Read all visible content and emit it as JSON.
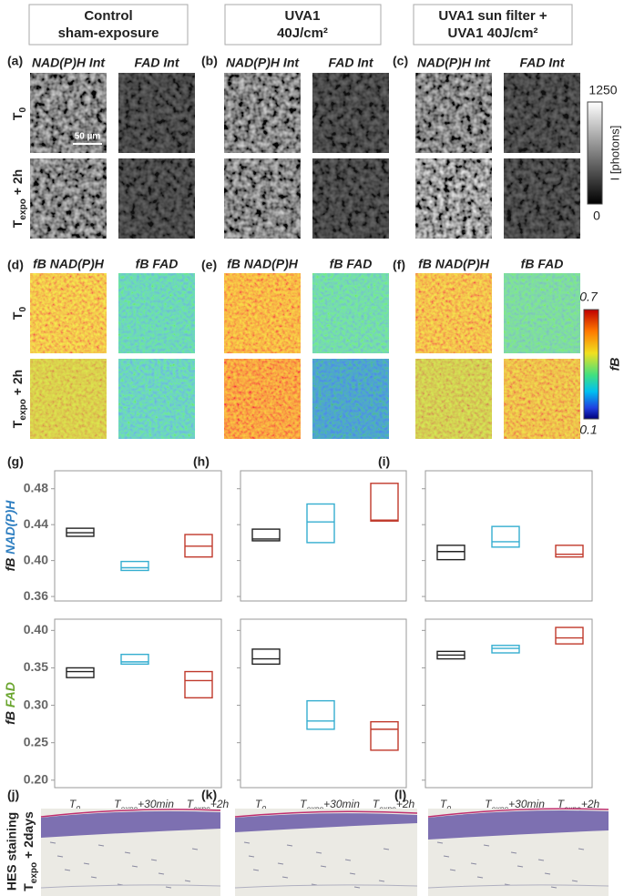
{
  "columns": [
    {
      "line1": "Control",
      "line2": "sham-exposure"
    },
    {
      "line1": "UVA1",
      "line2": "40J/cm²"
    },
    {
      "line1": "UVA1 sun filter +",
      "line2": "UVA1 40J/cm²"
    }
  ],
  "row_labels": [
    {
      "main": "T",
      "sub": "0"
    },
    {
      "main": "T",
      "sub": "expo",
      "tail": " + 2h"
    }
  ],
  "intensity_panels": {
    "letters": [
      "(a)",
      "(b)",
      "(c)"
    ],
    "channels": [
      "NAD(P)H Int",
      "FAD Int"
    ],
    "scale_bar": "50 µm",
    "colorbar": {
      "max": 1250,
      "min": 0,
      "label": "I [photons]"
    }
  },
  "fb_panels": {
    "letters": [
      "(d)",
      "(e)",
      "(f)"
    ],
    "channels": [
      "fB NAD(P)H",
      "fB FAD"
    ],
    "colorbar": {
      "max": 0.7,
      "min": 0.1,
      "label": "fB"
    }
  },
  "chart_data": [
    {
      "type": "box",
      "letter": "(g)",
      "ylabel": {
        "prefix": "fB",
        "name": "NAD(P)H",
        "name_color": "#2f7fc1"
      },
      "show_tick_labels": true,
      "ylim": [
        0.355,
        0.5
      ],
      "yticks": [
        0.36,
        {
          "value": 0.4,
          "label": "0.40"
        },
        0.44,
        0.48
      ],
      "boxes": [
        {
          "color": "#222222",
          "q1": 0.427,
          "median": 0.431,
          "q3": 0.436
        },
        {
          "color": "#35aed0",
          "q1": 0.389,
          "median": 0.392,
          "q3": 0.399
        },
        {
          "color": "#c0392b",
          "q1": 0.404,
          "median": 0.416,
          "q3": 0.429
        }
      ]
    },
    {
      "type": "box",
      "letter": "(h)",
      "show_tick_labels": false,
      "ylim": [
        0.355,
        0.5
      ],
      "yticks": [
        0.36,
        {
          "value": 0.4,
          "label": "0.40"
        },
        0.44,
        0.48
      ],
      "boxes": [
        {
          "color": "#222222",
          "q1": 0.422,
          "median": 0.424,
          "q3": 0.435
        },
        {
          "color": "#35aed0",
          "q1": 0.42,
          "median": 0.443,
          "q3": 0.463
        },
        {
          "color": "#c0392b",
          "q1": 0.444,
          "median": 0.445,
          "q3": 0.486
        }
      ]
    },
    {
      "type": "box",
      "letter": "(i)",
      "show_tick_labels": false,
      "ylim": [
        0.355,
        0.5
      ],
      "yticks": [
        0.36,
        {
          "value": 0.4,
          "label": "0.40"
        },
        0.44,
        0.48
      ],
      "boxes": [
        {
          "color": "#222222",
          "q1": 0.401,
          "median": 0.41,
          "q3": 0.417
        },
        {
          "color": "#35aed0",
          "q1": 0.415,
          "median": 0.421,
          "q3": 0.438
        },
        {
          "color": "#c0392b",
          "q1": 0.404,
          "median": 0.407,
          "q3": 0.417
        }
      ]
    },
    {
      "type": "box",
      "ylabel": {
        "prefix": "fB",
        "name": "FAD",
        "name_color": "#6aa52e"
      },
      "show_tick_labels": true,
      "ylim": [
        0.19,
        0.415
      ],
      "yticks": [
        {
          "value": 0.2,
          "label": "0.20"
        },
        0.25,
        {
          "value": 0.3,
          "label": "0.30"
        },
        0.35,
        {
          "value": 0.4,
          "label": "0.40"
        }
      ],
      "categories": [
        {
          "main": "T",
          "sub": "0"
        },
        {
          "main": "T",
          "sub": "expo",
          "tail": "+30min"
        },
        {
          "main": "T",
          "sub": "expo",
          "tail": "+2h"
        }
      ],
      "boxes": [
        {
          "color": "#222222",
          "q1": 0.337,
          "median": 0.345,
          "q3": 0.35
        },
        {
          "color": "#35aed0",
          "q1": 0.355,
          "median": 0.358,
          "q3": 0.368
        },
        {
          "color": "#c0392b",
          "q1": 0.31,
          "median": 0.333,
          "q3": 0.345
        }
      ]
    },
    {
      "type": "box",
      "show_tick_labels": false,
      "ylim": [
        0.19,
        0.415
      ],
      "yticks": [
        {
          "value": 0.2,
          "label": "0.20"
        },
        0.25,
        {
          "value": 0.3,
          "label": "0.30"
        },
        0.35,
        {
          "value": 0.4,
          "label": "0.40"
        }
      ],
      "categories": [
        {
          "main": "T",
          "sub": "0"
        },
        {
          "main": "T",
          "sub": "expo",
          "tail": "+30min"
        },
        {
          "main": "T",
          "sub": "expo",
          "tail": "+2h"
        }
      ],
      "boxes": [
        {
          "color": "#222222",
          "q1": 0.355,
          "median": 0.362,
          "q3": 0.375
        },
        {
          "color": "#35aed0",
          "q1": 0.268,
          "median": 0.279,
          "q3": 0.306
        },
        {
          "color": "#c0392b",
          "q1": 0.24,
          "median": 0.268,
          "q3": 0.278
        }
      ]
    },
    {
      "type": "box",
      "show_tick_labels": false,
      "ylim": [
        0.19,
        0.415
      ],
      "yticks": [
        {
          "value": 0.2,
          "label": "0.20"
        },
        0.25,
        {
          "value": 0.3,
          "label": "0.30"
        },
        0.35,
        {
          "value": 0.4,
          "label": "0.40"
        }
      ],
      "categories": [
        {
          "main": "T",
          "sub": "0"
        },
        {
          "main": "T",
          "sub": "expo",
          "tail": "+30min"
        },
        {
          "main": "T",
          "sub": "expo",
          "tail": "+2h"
        }
      ],
      "boxes": [
        {
          "color": "#222222",
          "q1": 0.362,
          "median": 0.367,
          "q3": 0.372
        },
        {
          "color": "#35aed0",
          "q1": 0.37,
          "median": 0.376,
          "q3": 0.38
        },
        {
          "color": "#c0392b",
          "q1": 0.382,
          "median": 0.39,
          "q3": 0.404
        }
      ]
    }
  ],
  "histology": {
    "letters": [
      "(j)",
      "(k)",
      "(l)"
    ],
    "label": {
      "line1": "HES staining",
      "main": "T",
      "sub": "expo",
      "tail": " + 2days"
    }
  }
}
